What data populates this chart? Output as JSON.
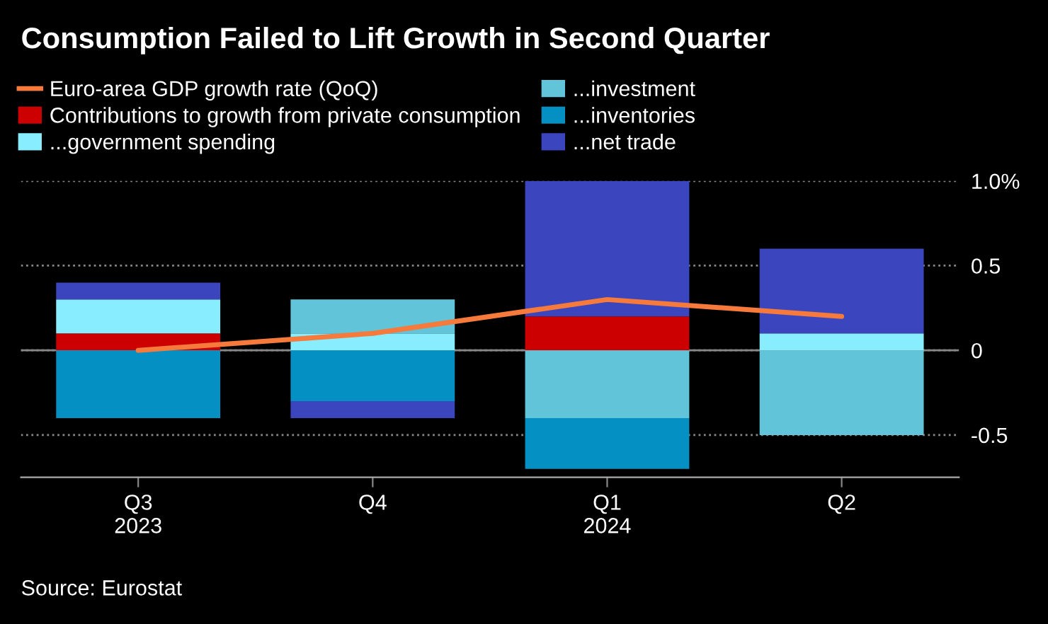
{
  "chart_data": {
    "type": "bar",
    "stacked": true,
    "title": "Consumption Failed to Lift Growth in Second Quarter",
    "categories": [
      "Q3\n2023",
      "Q4",
      "Q1\n2024",
      "Q2"
    ],
    "series": [
      {
        "name": "Euro-area GDP growth rate (QoQ)",
        "type": "line",
        "color": "#f57a3c",
        "values": [
          0.0,
          0.1,
          0.3,
          0.2
        ]
      },
      {
        "name": "Contributions to growth from private consumption",
        "color": "#cc0000",
        "values": [
          0.1,
          null,
          0.2,
          null
        ]
      },
      {
        "name": "...government spending",
        "color": "#88eeff",
        "values": [
          0.2,
          0.1,
          null,
          0.1
        ]
      },
      {
        "name": "...investment",
        "color": "#62c4d9",
        "values": [
          null,
          0.2,
          -0.4,
          -0.5
        ]
      },
      {
        "name": "...inventories",
        "color": "#0590c3",
        "values": [
          -0.4,
          -0.3,
          -0.3,
          null
        ]
      },
      {
        "name": "...net trade",
        "color": "#3b45bd",
        "values": [
          0.1,
          -0.1,
          0.8,
          0.5
        ]
      }
    ],
    "ylim": [
      -0.75,
      1.0
    ],
    "yticks": [
      {
        "value": 1.0,
        "label": "1.0%"
      },
      0.5,
      0,
      -0.5
    ],
    "grid": "y",
    "legend": "top",
    "annotations": [
      "Source: Eurostat"
    ]
  }
}
